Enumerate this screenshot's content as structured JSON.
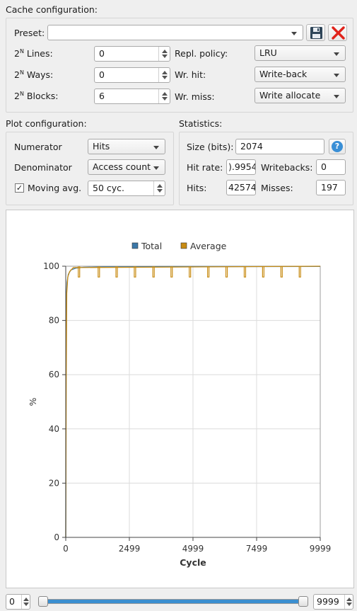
{
  "cache": {
    "title": "Cache configuration:",
    "preset_label": "Preset:",
    "preset_value": "",
    "lines_label": "Lines:",
    "ways_label": "Ways:",
    "blocks_label": "Blocks:",
    "pow_base": "2",
    "pow_sup": "N",
    "lines_value": "0",
    "ways_value": "0",
    "blocks_value": "6",
    "repl_label": "Repl. policy:",
    "repl_value": "LRU",
    "wrhit_label": "Wr. hit:",
    "wrhit_value": "Write-back",
    "wrmiss_label": "Wr. miss:",
    "wrmiss_value": "Write allocate",
    "save_icon": "save-icon",
    "delete_icon": "delete-icon"
  },
  "plot_config": {
    "title": "Plot configuration:",
    "numerator_label": "Numerator",
    "numerator_value": "Hits",
    "denominator_label": "Denominator",
    "denominator_value": "Access count",
    "moving_avg_label": "Moving avg.",
    "moving_avg_checked": "✓",
    "moving_avg_value": "50 cyc."
  },
  "stats": {
    "title": "Statistics:",
    "size_label": "Size (bits):",
    "size_value": "2074",
    "hitrate_label": "Hit rate:",
    "hitrate_value": ").9954",
    "writebacks_label": "Writebacks:",
    "writebacks_value": "0",
    "hits_label": "Hits:",
    "hits_value": "42574",
    "misses_label": "Misses:",
    "misses_value": "197",
    "help_icon": "help-icon"
  },
  "chart_data": {
    "type": "line",
    "title": "",
    "xlabel": "Cycle",
    "ylabel": "%",
    "xlim": [
      0,
      9999
    ],
    "ylim": [
      0,
      100
    ],
    "xticks": [
      "0",
      "2499",
      "4999",
      "7499",
      "9999"
    ],
    "yticks": [
      "0",
      "20",
      "40",
      "60",
      "80",
      "100"
    ],
    "legend_position": "top-center",
    "grid": true,
    "series": [
      {
        "name": "Total",
        "color": "#3b77a8",
        "points": [
          [
            0,
            0
          ],
          [
            5,
            50
          ],
          [
            20,
            88
          ],
          [
            50,
            94
          ],
          [
            100,
            97
          ],
          [
            200,
            98.6
          ],
          [
            400,
            99.3
          ],
          [
            700,
            99.6
          ],
          [
            1500,
            99.75
          ],
          [
            4000,
            99.85
          ],
          [
            9999,
            99.9
          ]
        ]
      },
      {
        "name": "Average",
        "color": "#c88b12",
        "points": [
          [
            0,
            0
          ],
          [
            20,
            60
          ],
          [
            40,
            90
          ],
          [
            80,
            96
          ],
          [
            150,
            98
          ],
          [
            300,
            99.5
          ],
          [
            9999,
            100
          ]
        ],
        "dip_cycles": [
          520,
          1300,
          2000,
          2720,
          3450,
          4160,
          4880,
          5600,
          6320,
          7040,
          7760,
          8480,
          9200
        ],
        "dip_value": 96
      }
    ]
  },
  "range": {
    "min_value": "0",
    "max_value": "9999",
    "slider_start_fraction": 0,
    "slider_end_fraction": 1
  }
}
